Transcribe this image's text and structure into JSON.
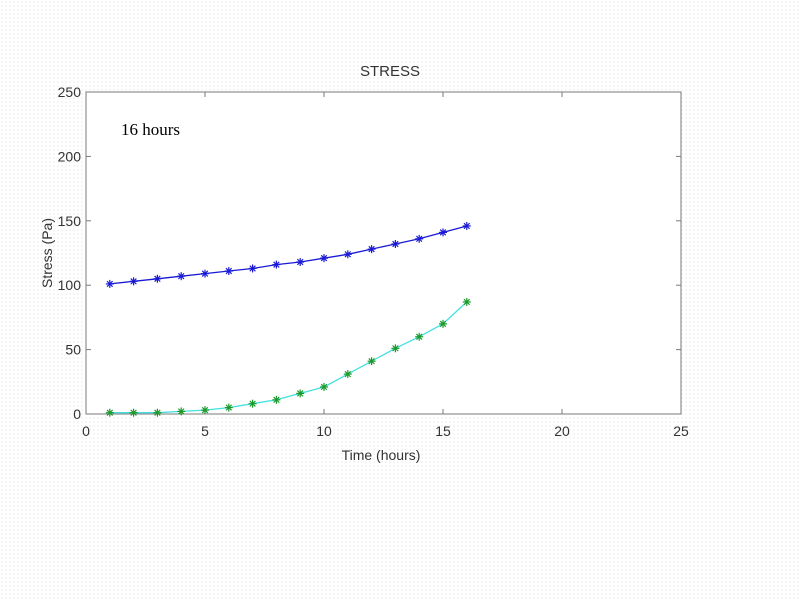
{
  "chart_data": {
    "type": "line",
    "title": "STRESS",
    "xlabel": "Time (hours)",
    "ylabel": "Stress (Pa)",
    "xlim": [
      0,
      25
    ],
    "ylim": [
      0,
      250
    ],
    "xticks": [
      0,
      5,
      10,
      15,
      20,
      25
    ],
    "yticks": [
      0,
      50,
      100,
      150,
      200,
      250
    ],
    "grid": false,
    "annotation": "16 hours",
    "x": [
      1,
      2,
      3,
      4,
      5,
      6,
      7,
      8,
      9,
      10,
      11,
      12,
      13,
      14,
      15,
      16
    ],
    "series": [
      {
        "values": [
          101,
          103,
          105,
          107,
          109,
          111,
          113,
          116,
          118,
          121,
          124,
          128,
          132,
          136,
          141,
          146
        ],
        "line_color": "#1a1ad6",
        "marker_color": "#1a1ad6",
        "marker": "asterisk"
      },
      {
        "values": [
          1,
          1,
          1,
          2,
          3,
          5,
          8,
          11,
          16,
          21,
          31,
          41,
          51,
          60,
          70,
          87
        ],
        "line_color": "#44e0e0",
        "marker_color": "#1a9a2a",
        "marker": "asterisk"
      }
    ]
  }
}
